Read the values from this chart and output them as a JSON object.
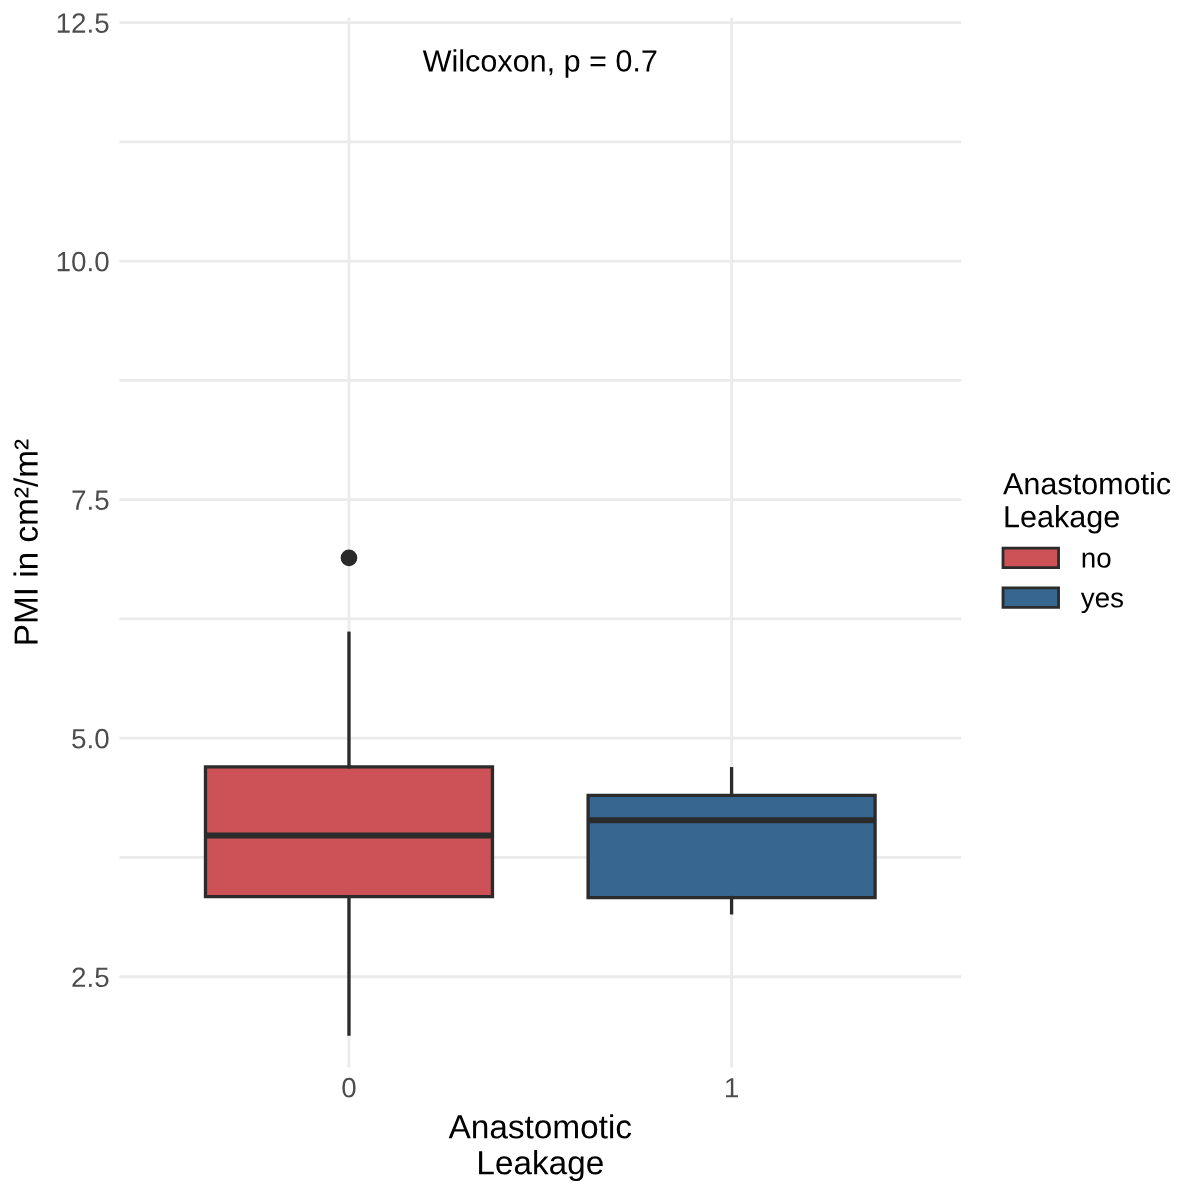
{
  "chart_data": {
    "type": "box",
    "categories": [
      "0",
      "1"
    ],
    "series": [
      {
        "name": "no",
        "color": "#cd5257",
        "boxes": [
          {
            "low": 1.9,
            "q1": 3.34,
            "median": 3.98,
            "q3": 4.7,
            "high": 6.1,
            "outliers": [
              6.89
            ]
          },
          null
        ]
      },
      {
        "name": "yes",
        "color": "#376790",
        "boxes": [
          null,
          {
            "low": 3.17,
            "q1": 3.33,
            "median": 4.14,
            "q3": 4.4,
            "high": 4.68
          }
        ]
      }
    ],
    "xlabel": "Anastomotic\nLeakage",
    "ylabel": "PMI in cm²/m²",
    "legend_title": "Anastomotic\nLeakage",
    "annotations": [
      "Wilcoxon, p = 0.7"
    ],
    "ylim": [
      1.55,
      12.55
    ],
    "yticks": [
      {
        "value": 2.5,
        "label": "2.5"
      },
      {
        "value": 3.75,
        "label": null
      },
      {
        "value": 5.0,
        "label": "5.0"
      },
      {
        "value": 6.25,
        "label": null
      },
      {
        "value": 7.5,
        "label": "7.5"
      },
      {
        "value": 8.75,
        "label": null
      },
      {
        "value": 10.0,
        "label": "10.0"
      },
      {
        "value": 11.25,
        "label": null
      },
      {
        "value": 12.5,
        "label": "12.5"
      }
    ],
    "grid": true,
    "legend": "right"
  }
}
